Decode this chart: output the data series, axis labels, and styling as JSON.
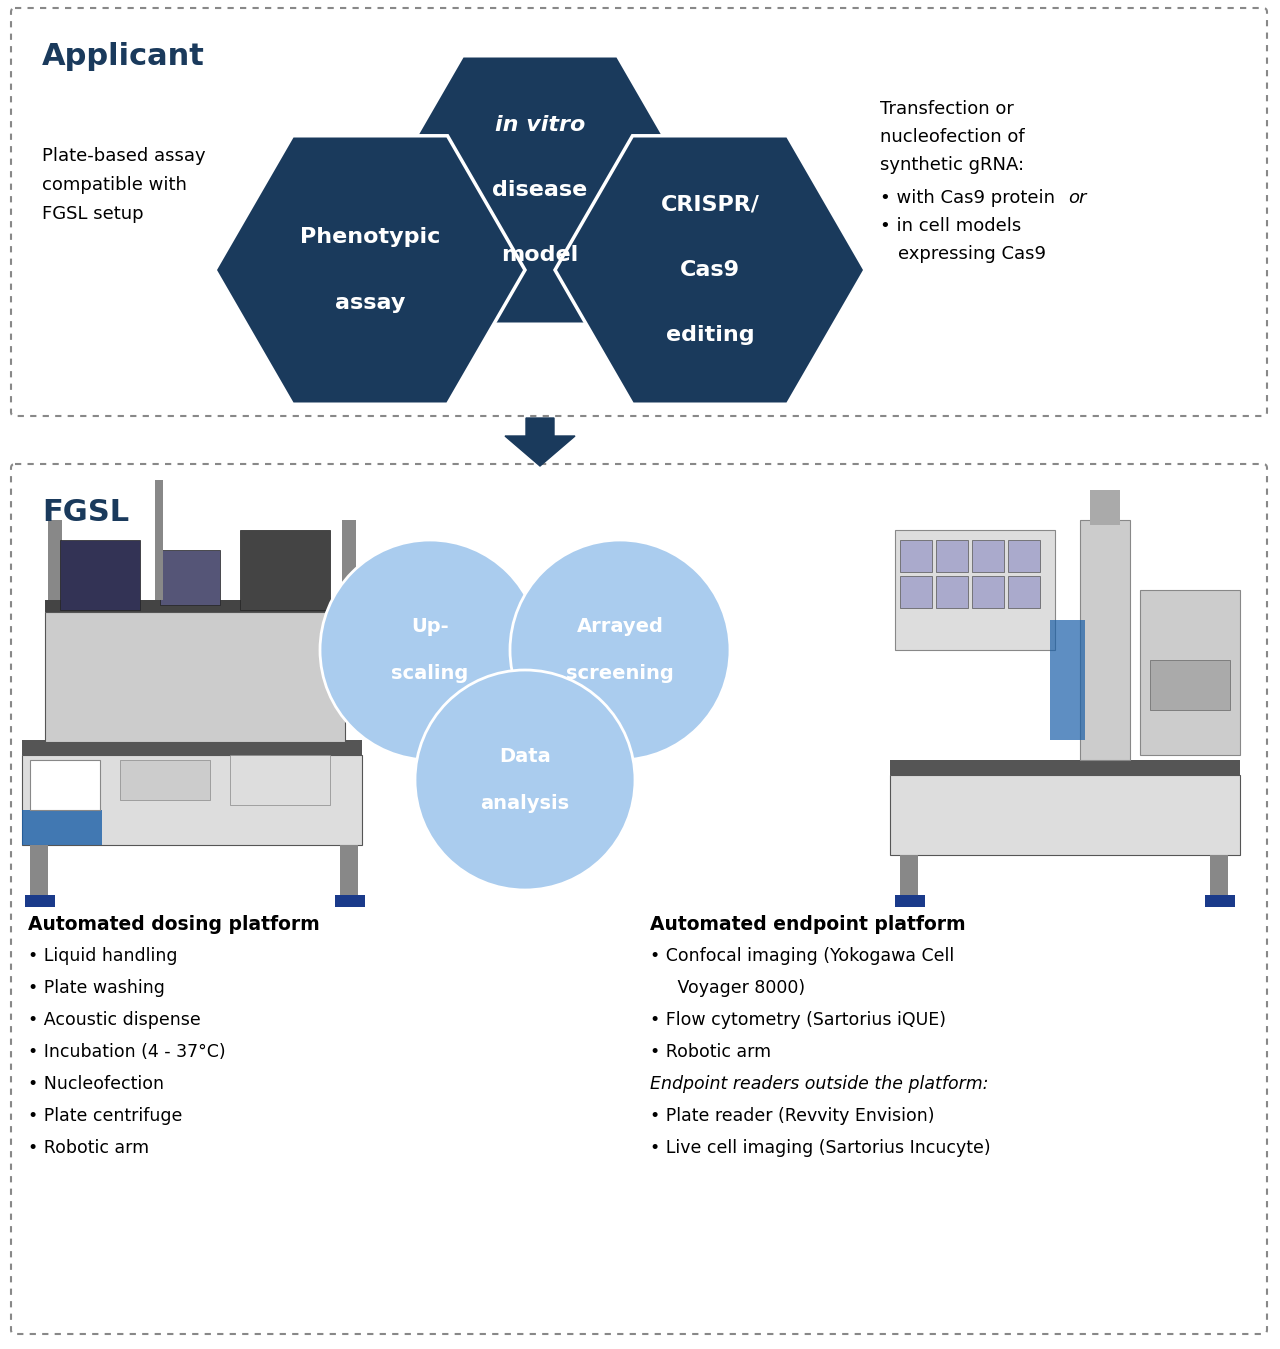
{
  "bg_color": "#ffffff",
  "top_section": {
    "label": "Applicant",
    "label_color": "#1a3a5c",
    "hex_color": "#1a3a5c",
    "left_text": "Plate-based assay\ncompatible with\nFGSL setup",
    "right_lines": [
      "Transfection or",
      "nucleofection of",
      "synthetic gRNA:"
    ],
    "bullet1_text": "• with Cas9 protein ",
    "bullet1_italic": "or",
    "bullet2": "• in cell models",
    "bullet3": "  expressing Cas9"
  },
  "arrow_color": "#1a3a5c",
  "bottom_section": {
    "label": "FGSL",
    "label_color": "#1a3a5c",
    "circle_color": "#aaccee",
    "circle_text_color": "#ffffff",
    "dosing_title": "Automated dosing platform",
    "dosing_items": [
      "Liquid handling",
      "Plate washing",
      "Acoustic dispense",
      "Incubation (4 - 37°C)",
      "Nucleofection",
      "Plate centrifuge",
      "Robotic arm"
    ],
    "endpoint_title": "Automated endpoint platform",
    "endpoint_normal": [
      "Confocal imaging (Yokogawa Cell\n   Voyager 8000)",
      "Flow cytometry (Sartorius iQUE)",
      "Robotic arm"
    ],
    "endpoint_italic_header": "Endpoint readers outside the platform:",
    "endpoint_italic_items": [
      "Plate reader (Revvity Envision)",
      "Live cell imaging (Sartorius Incucyte)"
    ]
  }
}
